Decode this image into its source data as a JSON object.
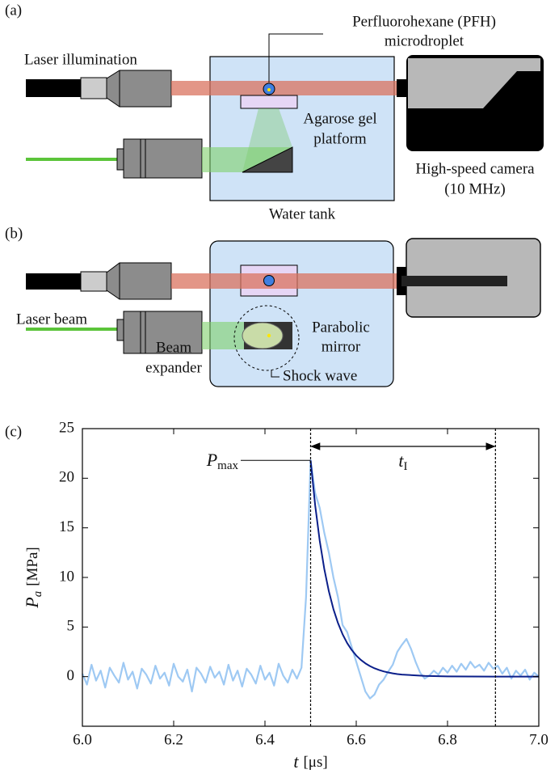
{
  "panel_a": {
    "label": "(a)",
    "laser_illumination": "Laser illumination",
    "droplet_label": [
      "Perfluorohexane (PFH)",
      "microdroplet"
    ],
    "gel_label": [
      "Agarose gel",
      "platform"
    ],
    "camera_label": [
      "High-speed camera",
      "(10 MHz)"
    ],
    "tank_label": "Water tank"
  },
  "panel_b": {
    "label": "(b)",
    "laser_beam": "Laser beam",
    "expander_label": [
      "Beam",
      "expander"
    ],
    "mirror_label": [
      "Parabolic",
      "mirror"
    ],
    "shock_label": "Shock wave"
  },
  "chart_data": {
    "type": "line",
    "label": "(c)",
    "xlabel": {
      "symbol": "t",
      "unit": "[μs]"
    },
    "ylabel": {
      "symbol": "P",
      "subscript": "a",
      "unit": "[MPa]"
    },
    "xlim": [
      6.0,
      7.0
    ],
    "ylim": [
      -5,
      25
    ],
    "xticks": [
      {
        "value": 6.0,
        "label": "6.0"
      },
      {
        "value": 6.2,
        "label": "6.2"
      },
      {
        "value": 6.4,
        "label": "6.4"
      },
      {
        "value": 6.6,
        "label": "6.6"
      },
      {
        "value": 6.8,
        "label": "6.8"
      },
      {
        "value": 7.0,
        "label": "7.0"
      }
    ],
    "yticks": [
      0,
      5,
      10,
      15,
      20,
      25
    ],
    "vlines": [
      6.5,
      6.905
    ],
    "pmax_label": {
      "symbol": "P",
      "subscript": "max"
    },
    "ti_label": {
      "symbol": "t",
      "subscript": "I"
    },
    "series": [
      {
        "color": "#9ec9f3",
        "width": 2.2,
        "x": [
          6,
          6.01,
          6.02,
          6.03,
          6.04,
          6.05,
          6.06,
          6.07,
          6.08,
          6.09,
          6.1,
          6.11,
          6.12,
          6.13,
          6.14,
          6.15,
          6.16,
          6.17,
          6.18,
          6.19,
          6.2,
          6.21,
          6.22,
          6.23,
          6.24,
          6.25,
          6.26,
          6.27,
          6.28,
          6.29,
          6.3,
          6.31,
          6.32,
          6.33,
          6.34,
          6.35,
          6.36,
          6.37,
          6.38,
          6.39,
          6.4,
          6.41,
          6.42,
          6.43,
          6.44,
          6.45,
          6.46,
          6.47,
          6.48,
          6.49,
          6.5,
          6.51,
          6.52,
          6.53,
          6.54,
          6.55,
          6.56,
          6.57,
          6.58,
          6.59,
          6.6,
          6.61,
          6.62,
          6.63,
          6.64,
          6.65,
          6.66,
          6.67,
          6.68,
          6.69,
          6.7,
          6.71,
          6.72,
          6.73,
          6.74,
          6.75,
          6.76,
          6.77,
          6.78,
          6.79,
          6.8,
          6.81,
          6.82,
          6.83,
          6.84,
          6.85,
          6.86,
          6.87,
          6.88,
          6.89,
          6.9,
          6.91,
          6.92,
          6.93,
          6.94,
          6.95,
          6.96,
          6.97,
          6.98,
          6.99,
          7
        ],
        "values": [
          0.3,
          -0.8,
          1.2,
          -0.4,
          0.6,
          -1.1,
          0.9,
          0.1,
          -0.6,
          1.4,
          -0.3,
          0.5,
          -1.2,
          0.8,
          0.2,
          -0.7,
          1.1,
          -0.2,
          0.4,
          -0.9,
          1.3,
          0,
          -0.5,
          0.7,
          -1.5,
          0.9,
          0.3,
          -0.6,
          1,
          -0.1,
          0.5,
          -0.8,
          1.2,
          -0.4,
          0.6,
          -1,
          0.8,
          0.2,
          -0.7,
          1.1,
          -0.3,
          0.4,
          -0.9,
          1.3,
          0.1,
          -0.6,
          0.7,
          -0.2,
          0.9,
          8,
          21.8,
          18.5,
          17,
          14.5,
          12.5,
          10,
          8,
          5.2,
          4.5,
          3,
          1.5,
          0,
          -1.5,
          -2.2,
          -1.8,
          -0.8,
          -0.3,
          0.5,
          1.2,
          2.5,
          3.2,
          3.8,
          2.8,
          1.5,
          0.4,
          -0.2,
          0.1,
          0.6,
          0.2,
          0.9,
          0.4,
          1.1,
          0.5,
          1.3,
          0.7,
          1.5,
          0.9,
          1.2,
          0.6,
          1.4,
          0.8,
          1.1,
          0.3,
          0.9,
          -0.2,
          0.6,
          0.1,
          0.7,
          -0.3,
          0.4,
          0
        ]
      },
      {
        "color": "#0b1f8a",
        "width": 2,
        "x": [
          6.5,
          6.51,
          6.52,
          6.53,
          6.54,
          6.55,
          6.56,
          6.57,
          6.58,
          6.59,
          6.6,
          6.61,
          6.62,
          6.63,
          6.64,
          6.65,
          6.66,
          6.67,
          6.68,
          6.69,
          6.7,
          6.75,
          6.8,
          6.85,
          6.9,
          6.95,
          7
        ],
        "values": [
          21.8,
          17.28,
          13.69,
          10.85,
          8.6,
          6.81,
          5.4,
          4.28,
          3.39,
          2.69,
          2.13,
          1.69,
          1.34,
          1.06,
          0.84,
          0.67,
          0.53,
          0.42,
          0.33,
          0.26,
          0.21,
          0.07,
          0.02,
          0.01,
          0,
          0,
          0
        ]
      }
    ]
  }
}
